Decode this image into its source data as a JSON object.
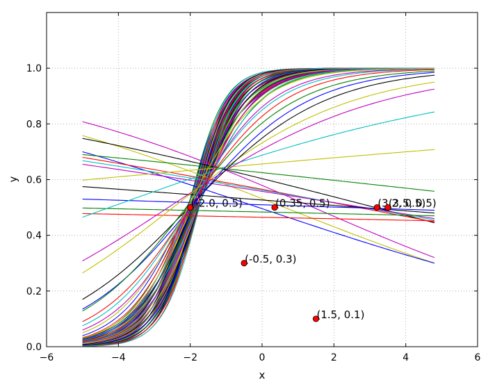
{
  "chart_data": {
    "type": "line",
    "title": "",
    "xlabel": "x",
    "ylabel": "y",
    "xlim": [
      -6,
      6
    ],
    "ylim": [
      0,
      1.2
    ],
    "xticks": [
      "−6",
      "−4",
      "−2",
      "0",
      "2",
      "4",
      "6"
    ],
    "yticks": [
      "0.0",
      "0.2",
      "0.4",
      "0.6",
      "0.8",
      "1.0"
    ],
    "xtick_values": [
      -6,
      -4,
      -2,
      0,
      2,
      4,
      6
    ],
    "ytick_values": [
      0.0,
      0.2,
      0.4,
      0.6,
      0.8,
      1.0
    ],
    "grid": true,
    "x_range": [
      -5,
      4.8
    ],
    "series_palette": [
      "#0000ff",
      "#008000",
      "#ff0000",
      "#00bfbf",
      "#bf00bf",
      "#bfbf00",
      "#000000"
    ],
    "logistic_curves": [
      {
        "start": 0.808,
        "end": 0.32
      },
      {
        "start": 0.758,
        "end": 0.3
      },
      {
        "start": 0.748,
        "end": 0.445
      },
      {
        "start": 0.7,
        "end": 0.3
      },
      {
        "start": 0.69,
        "end": 0.558
      },
      {
        "start": 0.68,
        "end": 0.448
      },
      {
        "start": 0.668,
        "end": 0.455
      },
      {
        "start": 0.655,
        "end": 0.46
      },
      {
        "start": 0.598,
        "end": 0.708
      },
      {
        "start": 0.575,
        "end": 0.48
      },
      {
        "start": 0.53,
        "end": 0.49
      },
      {
        "start": 0.498,
        "end": 0.47
      },
      {
        "start": 0.478,
        "end": 0.452
      },
      {
        "start": 0.465,
        "end": 0.843
      },
      {
        "start": 0.308,
        "end": 0.925
      },
      {
        "start": 0.265,
        "end": 0.95
      },
      {
        "start": 0.17,
        "end": 0.975
      },
      {
        "start": 0.135,
        "end": 0.985
      },
      {
        "start": 0.128,
        "end": 0.99
      },
      {
        "start": 0.09,
        "end": 0.995
      },
      {
        "start": 0.075,
        "end": 0.997
      },
      {
        "start": 0.06,
        "end": 0.998
      },
      {
        "start": 0.05,
        "end": 0.999
      }
    ],
    "dense_family": {
      "count": 60,
      "x0_range": [
        -2.1,
        -1.75
      ],
      "k_range": [
        1.1,
        2.1
      ]
    },
    "points": [
      {
        "x": -2.0,
        "y": 0.5,
        "label": "(-2.0, 0.5)"
      },
      {
        "x": 0.35,
        "y": 0.5,
        "label": "(0.35, 0.5)"
      },
      {
        "x": -0.5,
        "y": 0.3,
        "label": "(-0.5, 0.3)"
      },
      {
        "x": 3.2,
        "y": 0.5,
        "label": "(3.2, 0.5)"
      },
      {
        "x": 3.5,
        "y": 0.5,
        "label": "(3.5, 0.5)"
      },
      {
        "x": 1.5,
        "y": 0.1,
        "label": "(1.5, 0.1)"
      }
    ],
    "point_color": "#ff0000"
  }
}
